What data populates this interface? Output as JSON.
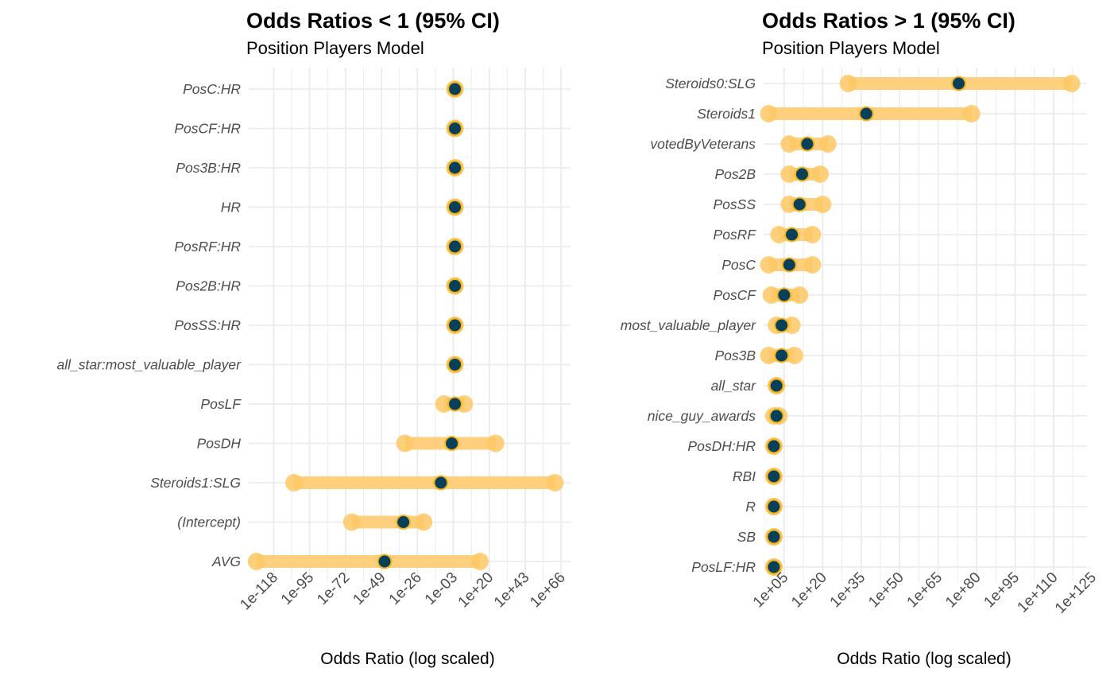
{
  "colors": {
    "ci_band": "#FECF7C",
    "ci_end": "#FEC865",
    "point_fill": "#08405A",
    "point_stroke": "#F5B521",
    "grid": "#EBEBEB",
    "label_text": "#4D4D4D"
  },
  "chart_data": [
    {
      "type": "scatter",
      "title": "Odds Ratios < 1 (95% CI)",
      "subtitle": "Position Players Model",
      "xlabel": "Odds Ratio (log scaled)",
      "xscale": "log10",
      "xlim": [
        -134,
        72
      ],
      "xticks": [
        -118,
        -95,
        -72,
        -49,
        -26,
        -3,
        20,
        43,
        66
      ],
      "xtick_labels": [
        "1e-118",
        "1e-95",
        "1e-72",
        "1e-49",
        "1e-26",
        "1e-03",
        "1e+20",
        "1e+43",
        "1e+66"
      ],
      "grid": true,
      "categories": [
        "PosC:HR",
        "PosCF:HR",
        "Pos3B:HR",
        "HR",
        "PosRF:HR",
        "Pos2B:HR",
        "PosSS:HR",
        "all_star:most_valuable_player",
        "PosLF",
        "PosDH",
        "Steroids1:SLG",
        "(Intercept)",
        "AVG"
      ],
      "log10_estimate": [
        -2,
        -2,
        -2,
        -2,
        -2,
        -2,
        -2,
        -2,
        -2,
        -4,
        -11,
        -35,
        -47
      ],
      "log10_lower": [
        -2,
        -2,
        -2,
        -2,
        -2,
        -2,
        -2,
        -2,
        -9,
        -34,
        -105,
        -68,
        -129
      ],
      "log10_upper": [
        -2,
        -2,
        -2,
        -2,
        -2,
        -2,
        -2,
        -2,
        4,
        24,
        62,
        -22,
        14
      ]
    },
    {
      "type": "scatter",
      "title": "Odds Ratios > 1 (95% CI)",
      "subtitle": "Position Players Model",
      "xlabel": "Odds Ratio (log scaled)",
      "xscale": "log10",
      "xlim": [
        -3,
        123
      ],
      "xticks": [
        5,
        20,
        35,
        50,
        65,
        80,
        95,
        110,
        125
      ],
      "xtick_labels": [
        "1e+05",
        "1e+20",
        "1e+35",
        "1e+50",
        "1e+65",
        "1e+80",
        "1e+95",
        "1e+110",
        "1e+125"
      ],
      "grid": true,
      "categories": [
        "Steroids0:SLG",
        "Steroids1",
        "votedByVeterans",
        "Pos2B",
        "PosSS",
        "PosRF",
        "PosC",
        "PosCF",
        "most_valuable_player",
        "Pos3B",
        "all_star",
        "nice_guy_awards",
        "PosDH:HR",
        "RBI",
        "R",
        "SB",
        "PosLF:HR"
      ],
      "log10_estimate": [
        73,
        37,
        14,
        12,
        11,
        8,
        7,
        5,
        4,
        4,
        2,
        2,
        1,
        1,
        1,
        1,
        1
      ],
      "log10_lower": [
        30,
        -1,
        7,
        7,
        7,
        3,
        -1,
        0,
        2,
        -1,
        2,
        1,
        1,
        1,
        1,
        1,
        1
      ],
      "log10_upper": [
        117,
        78,
        22,
        19,
        20,
        16,
        16,
        11,
        8,
        9,
        2,
        3,
        1,
        1,
        1,
        1,
        1
      ]
    }
  ]
}
